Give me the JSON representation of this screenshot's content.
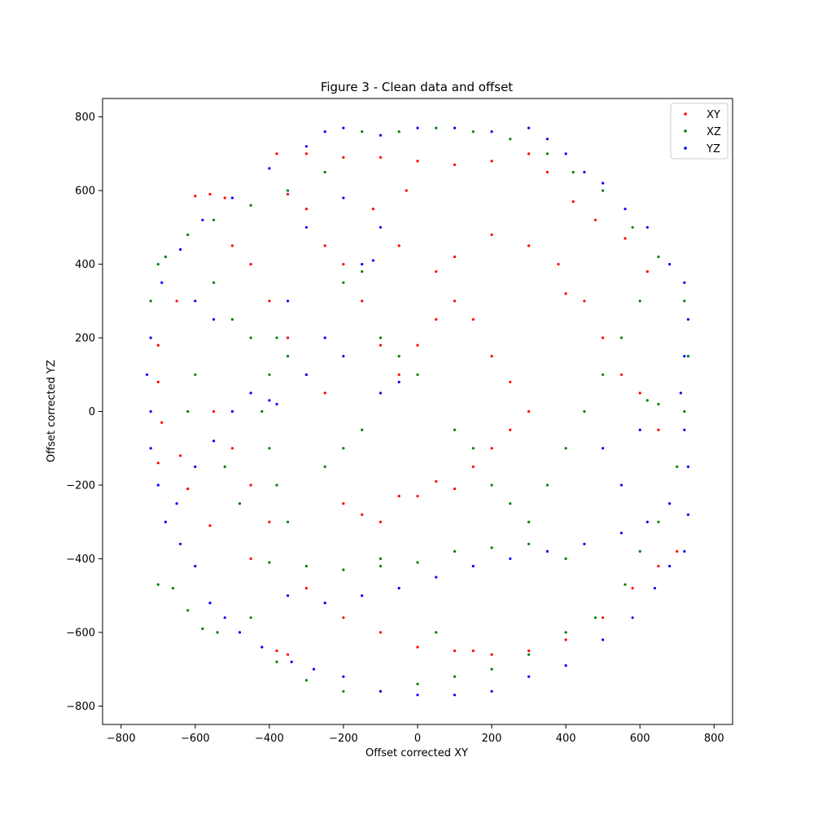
{
  "chart_data": {
    "type": "scatter",
    "title": "Figure 3 - Clean data and offset",
    "xlabel": "Offset corrected XY",
    "ylabel": "Offset corrected YZ",
    "xlim": [
      -850,
      850
    ],
    "ylim": [
      -850,
      850
    ],
    "xticks": [
      -800,
      -600,
      -400,
      -200,
      0,
      200,
      400,
      600,
      800
    ],
    "yticks": [
      -800,
      -600,
      -400,
      -200,
      0,
      200,
      400,
      600,
      800
    ],
    "grid": false,
    "legend_position": "top-right",
    "point_summary": "about 11000 points per series, forming a ring of radius ~720–770 around the origin",
    "series": [
      {
        "name": "XY",
        "color": "#ff0000",
        "points": [
          [
            -600,
            585
          ],
          [
            -560,
            590
          ],
          [
            -520,
            580
          ],
          [
            -380,
            700
          ],
          [
            -300,
            700
          ],
          [
            -200,
            690
          ],
          [
            -100,
            690
          ],
          [
            0,
            680
          ],
          [
            100,
            670
          ],
          [
            200,
            680
          ],
          [
            300,
            700
          ],
          [
            350,
            650
          ],
          [
            420,
            570
          ],
          [
            480,
            520
          ],
          [
            560,
            470
          ],
          [
            620,
            380
          ],
          [
            -650,
            300
          ],
          [
            -700,
            180
          ],
          [
            -700,
            80
          ],
          [
            -690,
            -30
          ],
          [
            -700,
            -140
          ],
          [
            -640,
            -120
          ],
          [
            -620,
            -210
          ],
          [
            -560,
            -310
          ],
          [
            -450,
            -400
          ],
          [
            -300,
            -480
          ],
          [
            -200,
            -560
          ],
          [
            -100,
            -600
          ],
          [
            0,
            -640
          ],
          [
            100,
            -650
          ],
          [
            200,
            -660
          ],
          [
            300,
            -650
          ],
          [
            400,
            -620
          ],
          [
            500,
            -560
          ],
          [
            580,
            -480
          ],
          [
            650,
            -420
          ],
          [
            700,
            -380
          ],
          [
            -380,
            -650
          ],
          [
            -350,
            -660
          ],
          [
            150,
            -650
          ],
          [
            -150,
            300
          ],
          [
            -100,
            180
          ],
          [
            -50,
            100
          ],
          [
            0,
            180
          ],
          [
            50,
            250
          ],
          [
            100,
            300
          ],
          [
            150,
            250
          ],
          [
            200,
            150
          ],
          [
            250,
            80
          ],
          [
            300,
            0
          ],
          [
            -200,
            -250
          ],
          [
            -150,
            -280
          ],
          [
            -100,
            -300
          ],
          [
            -50,
            -230
          ],
          [
            0,
            -230
          ],
          [
            50,
            -190
          ],
          [
            100,
            -210
          ],
          [
            150,
            -150
          ],
          [
            200,
            -100
          ],
          [
            250,
            -50
          ],
          [
            -250,
            50
          ],
          [
            -300,
            100
          ],
          [
            -350,
            200
          ],
          [
            -400,
            300
          ],
          [
            -450,
            400
          ],
          [
            -500,
            450
          ],
          [
            -350,
            590
          ],
          [
            -300,
            550
          ],
          [
            -250,
            450
          ],
          [
            -200,
            400
          ],
          [
            400,
            320
          ],
          [
            450,
            300
          ],
          [
            500,
            200
          ],
          [
            550,
            100
          ],
          [
            600,
            50
          ],
          [
            650,
            -50
          ],
          [
            -550,
            0
          ],
          [
            -500,
            -100
          ],
          [
            -450,
            -200
          ],
          [
            -400,
            -300
          ],
          [
            380,
            400
          ],
          [
            300,
            450
          ],
          [
            200,
            480
          ],
          [
            100,
            420
          ],
          [
            50,
            380
          ],
          [
            -50,
            450
          ],
          [
            -120,
            550
          ],
          [
            -30,
            600
          ]
        ]
      },
      {
        "name": "XZ",
        "color": "#008000",
        "points": [
          [
            -700,
            400
          ],
          [
            -680,
            420
          ],
          [
            -720,
            300
          ],
          [
            -700,
            -470
          ],
          [
            -660,
            -480
          ],
          [
            -620,
            -540
          ],
          [
            -580,
            -590
          ],
          [
            -540,
            -600
          ],
          [
            -450,
            -560
          ],
          [
            -380,
            -680
          ],
          [
            -300,
            -730
          ],
          [
            -200,
            -760
          ],
          [
            -100,
            -760
          ],
          [
            0,
            -740
          ],
          [
            100,
            -720
          ],
          [
            200,
            -700
          ],
          [
            300,
            -660
          ],
          [
            400,
            -600
          ],
          [
            480,
            -560
          ],
          [
            560,
            -470
          ],
          [
            600,
            -380
          ],
          [
            650,
            -300
          ],
          [
            700,
            -150
          ],
          [
            720,
            0
          ],
          [
            730,
            150
          ],
          [
            720,
            300
          ],
          [
            650,
            420
          ],
          [
            580,
            500
          ],
          [
            500,
            600
          ],
          [
            420,
            650
          ],
          [
            350,
            700
          ],
          [
            250,
            740
          ],
          [
            150,
            760
          ],
          [
            50,
            770
          ],
          [
            -50,
            760
          ],
          [
            -150,
            760
          ],
          [
            -250,
            650
          ],
          [
            -350,
            600
          ],
          [
            -450,
            560
          ],
          [
            -550,
            520
          ],
          [
            -620,
            480
          ],
          [
            -400,
            -410
          ],
          [
            -300,
            -420
          ],
          [
            -200,
            -430
          ],
          [
            -100,
            -420
          ],
          [
            0,
            -410
          ],
          [
            100,
            -380
          ],
          [
            200,
            -370
          ],
          [
            300,
            -360
          ],
          [
            400,
            -400
          ],
          [
            -350,
            150
          ],
          [
            -380,
            200
          ],
          [
            -400,
            100
          ],
          [
            -420,
            0
          ],
          [
            -400,
            -100
          ],
          [
            -380,
            -200
          ],
          [
            -350,
            -300
          ],
          [
            -200,
            350
          ],
          [
            -150,
            380
          ],
          [
            -100,
            200
          ],
          [
            -50,
            150
          ],
          [
            0,
            100
          ],
          [
            100,
            -50
          ],
          [
            150,
            -100
          ],
          [
            200,
            -200
          ],
          [
            250,
            -250
          ],
          [
            300,
            -300
          ],
          [
            350,
            -200
          ],
          [
            400,
            -100
          ],
          [
            450,
            0
          ],
          [
            500,
            100
          ],
          [
            550,
            200
          ],
          [
            600,
            300
          ],
          [
            620,
            30
          ],
          [
            650,
            20
          ],
          [
            -250,
            -150
          ],
          [
            -200,
            -100
          ],
          [
            -150,
            -50
          ],
          [
            -100,
            -400
          ],
          [
            50,
            -600
          ],
          [
            -550,
            350
          ],
          [
            -500,
            250
          ],
          [
            -450,
            200
          ],
          [
            -520,
            -150
          ],
          [
            -480,
            -250
          ],
          [
            -600,
            100
          ],
          [
            -620,
            0
          ]
        ]
      },
      {
        "name": "YZ",
        "color": "#0000ff",
        "points": [
          [
            -720,
            200
          ],
          [
            -730,
            100
          ],
          [
            -720,
            0
          ],
          [
            -720,
            -100
          ],
          [
            -700,
            -200
          ],
          [
            -680,
            -300
          ],
          [
            -640,
            -360
          ],
          [
            -600,
            -420
          ],
          [
            -560,
            -520
          ],
          [
            -520,
            -560
          ],
          [
            -480,
            -600
          ],
          [
            -420,
            -640
          ],
          [
            -340,
            -680
          ],
          [
            -280,
            -700
          ],
          [
            -200,
            -720
          ],
          [
            -100,
            -760
          ],
          [
            0,
            -770
          ],
          [
            100,
            -770
          ],
          [
            200,
            -760
          ],
          [
            300,
            -720
          ],
          [
            400,
            -690
          ],
          [
            500,
            -620
          ],
          [
            580,
            -560
          ],
          [
            640,
            -480
          ],
          [
            680,
            -420
          ],
          [
            720,
            -380
          ],
          [
            730,
            -280
          ],
          [
            730,
            -150
          ],
          [
            720,
            -50
          ],
          [
            710,
            50
          ],
          [
            720,
            150
          ],
          [
            730,
            250
          ],
          [
            720,
            350
          ],
          [
            680,
            400
          ],
          [
            620,
            500
          ],
          [
            560,
            550
          ],
          [
            500,
            620
          ],
          [
            450,
            650
          ],
          [
            400,
            700
          ],
          [
            350,
            740
          ],
          [
            300,
            770
          ],
          [
            200,
            760
          ],
          [
            100,
            770
          ],
          [
            0,
            770
          ],
          [
            -100,
            750
          ],
          [
            -200,
            770
          ],
          [
            -250,
            760
          ],
          [
            -300,
            720
          ],
          [
            -400,
            660
          ],
          [
            -500,
            580
          ],
          [
            -580,
            520
          ],
          [
            -640,
            440
          ],
          [
            -690,
            350
          ],
          [
            -150,
            400
          ],
          [
            -120,
            410
          ],
          [
            -100,
            500
          ],
          [
            -200,
            580
          ],
          [
            -300,
            500
          ],
          [
            -400,
            30
          ],
          [
            -380,
            20
          ],
          [
            -450,
            50
          ],
          [
            -500,
            0
          ],
          [
            -550,
            -80
          ],
          [
            -600,
            -150
          ],
          [
            -650,
            -250
          ],
          [
            -350,
            -500
          ],
          [
            -250,
            -520
          ],
          [
            -150,
            -500
          ],
          [
            -50,
            -480
          ],
          [
            50,
            -450
          ],
          [
            150,
            -420
          ],
          [
            250,
            -400
          ],
          [
            350,
            -380
          ],
          [
            450,
            -360
          ],
          [
            550,
            -330
          ],
          [
            620,
            -300
          ],
          [
            680,
            -250
          ],
          [
            -300,
            100
          ],
          [
            -250,
            200
          ],
          [
            -200,
            150
          ],
          [
            -100,
            50
          ],
          [
            -50,
            80
          ],
          [
            -550,
            250
          ],
          [
            -600,
            300
          ],
          [
            -350,
            300
          ],
          [
            500,
            -100
          ],
          [
            550,
            -200
          ],
          [
            600,
            -50
          ]
        ]
      }
    ]
  }
}
